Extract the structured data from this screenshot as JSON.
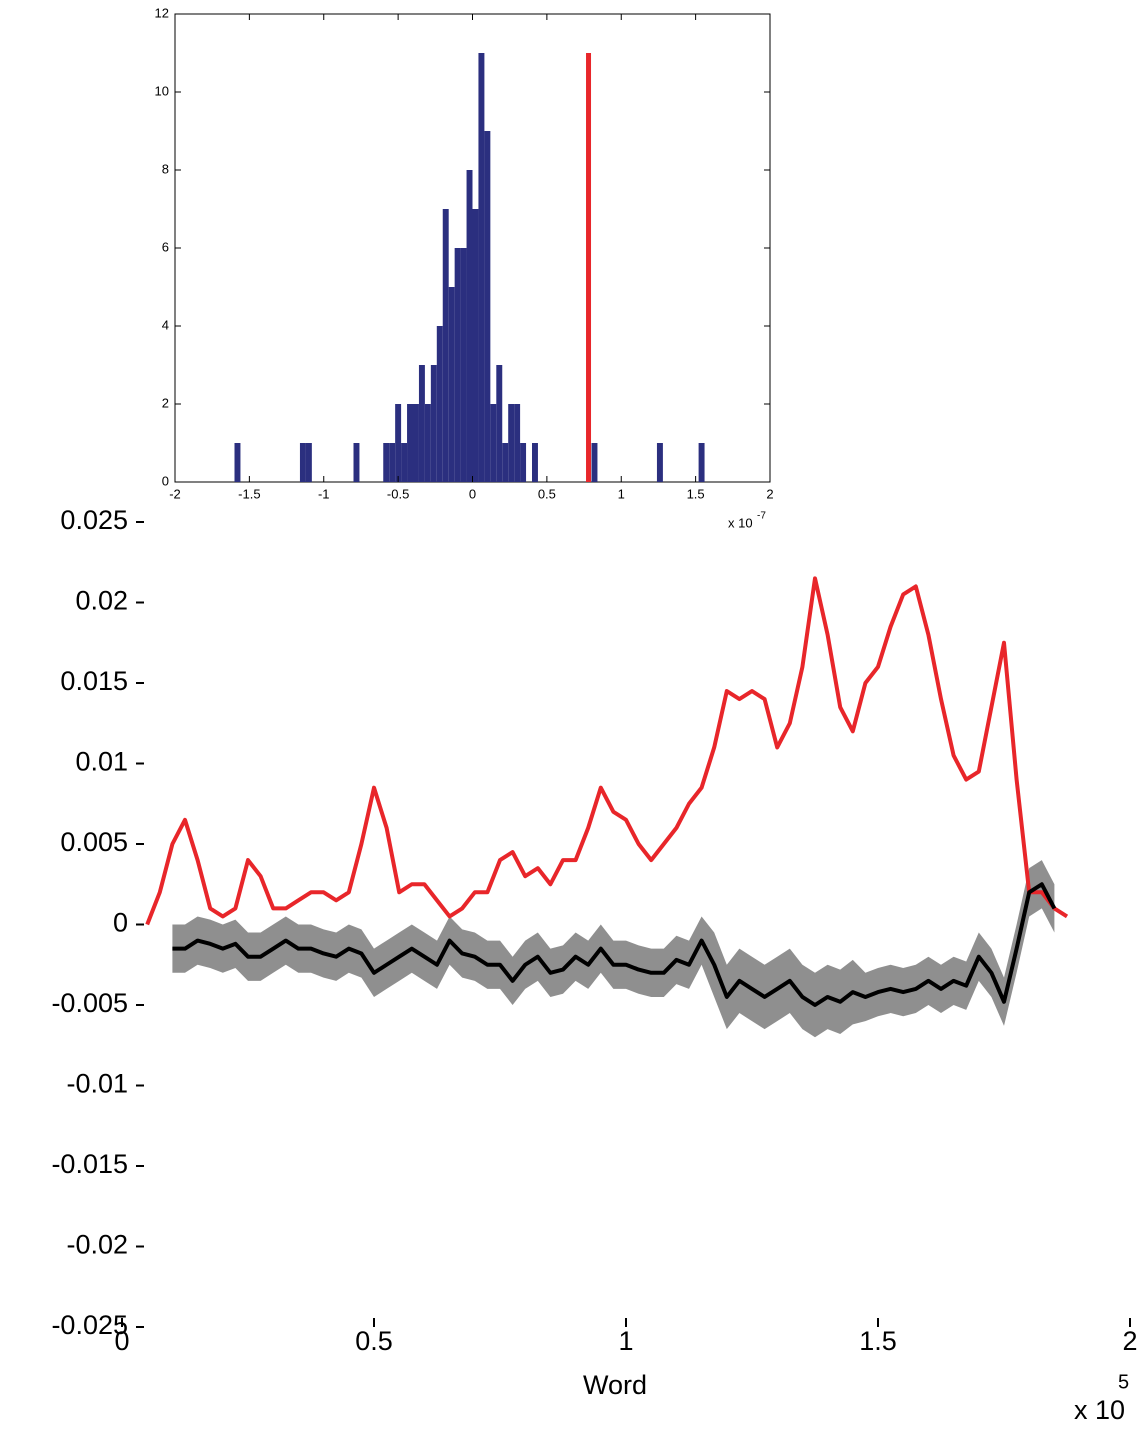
{
  "chart_data": [
    {
      "type": "histogram",
      "bins": [
        -1.6,
        -1.56,
        -1.52,
        -1.48,
        -1.44,
        -1.4,
        -1.36,
        -1.32,
        -1.28,
        -1.24,
        -1.2,
        -1.16,
        -1.12,
        -1.08,
        -1.04,
        -1,
        -0.96,
        -0.92,
        -0.88,
        -0.84,
        -0.8,
        -0.76,
        -0.72,
        -0.68,
        -0.64,
        -0.6,
        -0.56,
        -0.52,
        -0.48,
        -0.44,
        -0.4,
        -0.36,
        -0.32,
        -0.28,
        -0.24,
        -0.2,
        -0.16,
        -0.12,
        -0.08,
        -0.04,
        0,
        0.04,
        0.08,
        0.12,
        0.16,
        0.2,
        0.24,
        0.28,
        0.32,
        0.36,
        0.4,
        0.44,
        0.48,
        0.52,
        0.56,
        0.6,
        0.64,
        0.68,
        0.72,
        0.76,
        0.8,
        0.84,
        0.88,
        0.92,
        0.96,
        1,
        1.04,
        1.08,
        1.12,
        1.16,
        1.2,
        1.24,
        1.28,
        1.32,
        1.36,
        1.4,
        1.44,
        1.48,
        1.52,
        1.56,
        1.6
      ],
      "counts": [
        1,
        0,
        0,
        0,
        0,
        0,
        0,
        0,
        0,
        0,
        0,
        1,
        1,
        0,
        0,
        0,
        0,
        0,
        0,
        0,
        1,
        0,
        0,
        0,
        0,
        1,
        1,
        2,
        1,
        2,
        2,
        3,
        2,
        3,
        4,
        7,
        5,
        6,
        6,
        8,
        7,
        11,
        9,
        2,
        3,
        1,
        2,
        2,
        1,
        0,
        1,
        0,
        0,
        0,
        0,
        0,
        0,
        0,
        0,
        0,
        1,
        0,
        0,
        0,
        0,
        0,
        0,
        0,
        0,
        0,
        0,
        1,
        0,
        0,
        0,
        0,
        0,
        0,
        1,
        0
      ],
      "color": "#2b2f7f",
      "xlim": [
        -2,
        2
      ],
      "xticks": [
        -2,
        -1.5,
        -1,
        -0.5,
        0,
        0.5,
        1,
        1.5,
        2
      ],
      "ylim": [
        0,
        12
      ],
      "yticks": [
        0,
        2,
        4,
        6,
        8,
        10,
        12
      ],
      "x_multiplier": "x 10",
      "x_exponent": "-7",
      "marker": {
        "x": 0.78,
        "height": 11,
        "color": "#e8262a"
      }
    },
    {
      "type": "line",
      "xlabel": "Word",
      "x_multiplier": "x 10",
      "x_exponent": "5",
      "x": [
        0.05,
        0.075,
        0.1,
        0.125,
        0.15,
        0.175,
        0.2,
        0.225,
        0.25,
        0.275,
        0.3,
        0.325,
        0.35,
        0.375,
        0.4,
        0.425,
        0.45,
        0.475,
        0.5,
        0.525,
        0.55,
        0.575,
        0.6,
        0.625,
        0.65,
        0.675,
        0.7,
        0.725,
        0.75,
        0.775,
        0.8,
        0.825,
        0.85,
        0.875,
        0.9,
        0.925,
        0.95,
        0.975,
        1,
        1.025,
        1.05,
        1.075,
        1.1,
        1.125,
        1.15,
        1.175,
        1.2,
        1.225,
        1.25,
        1.275,
        1.3,
        1.325,
        1.35,
        1.375,
        1.4,
        1.425,
        1.45,
        1.475,
        1.5,
        1.525,
        1.55,
        1.575,
        1.6,
        1.625,
        1.65,
        1.675,
        1.7,
        1.725,
        1.75,
        1.775,
        1.8,
        1.825,
        1.85,
        1.875
      ],
      "xlim": [
        0,
        2
      ],
      "xticks": [
        0,
        0.5,
        1,
        1.5,
        2
      ],
      "ylim": [
        -0.025,
        0.025
      ],
      "yticks": [
        0.025,
        0.02,
        0.015,
        0.01,
        0.005,
        0,
        -0.005,
        -0.01,
        -0.015,
        -0.02,
        -0.025
      ],
      "series": [
        {
          "color": "#e8262a",
          "values": [
            0,
            0.002,
            0.005,
            0.0065,
            0.004,
            0.001,
            0.0005,
            0.001,
            0.004,
            0.003,
            0.001,
            0.001,
            0.0015,
            0.002,
            0.002,
            0.0015,
            0.002,
            0.005,
            0.0085,
            0.006,
            0.002,
            0.0025,
            0.0025,
            0.0015,
            0.0005,
            0.001,
            0.002,
            0.002,
            0.004,
            0.0045,
            0.003,
            0.0035,
            0.0025,
            0.004,
            0.004,
            0.006,
            0.0085,
            0.007,
            0.0065,
            0.005,
            0.004,
            0.005,
            0.006,
            0.0075,
            0.0085,
            0.011,
            0.0145,
            0.014,
            0.0145,
            0.014,
            0.011,
            0.0125,
            0.016,
            0.0215,
            0.018,
            0.0135,
            0.012,
            0.015,
            0.016,
            0.0185,
            0.0205,
            0.021,
            0.018,
            0.014,
            0.0105,
            0.009,
            0.0095,
            0.0135,
            0.0175,
            0.009,
            0.002,
            0.002,
            0.001,
            0.0005
          ]
        },
        {
          "color": "#000000",
          "band_color": "#808080",
          "values": [
            null,
            null,
            -0.0015,
            -0.0015,
            -0.001,
            -0.0012,
            -0.0015,
            -0.0012,
            -0.002,
            -0.002,
            -0.0015,
            -0.001,
            -0.0015,
            -0.0015,
            -0.0018,
            -0.002,
            -0.0015,
            -0.0018,
            -0.003,
            -0.0025,
            -0.002,
            -0.0015,
            -0.002,
            -0.0025,
            -0.001,
            -0.0018,
            -0.002,
            -0.0025,
            -0.0025,
            -0.0035,
            -0.0025,
            -0.002,
            -0.003,
            -0.0028,
            -0.002,
            -0.0025,
            -0.0015,
            -0.0025,
            -0.0025,
            -0.0028,
            -0.003,
            -0.003,
            -0.0022,
            -0.0025,
            -0.001,
            -0.0025,
            -0.0045,
            -0.0035,
            -0.004,
            -0.0045,
            -0.004,
            -0.0035,
            -0.0045,
            -0.005,
            -0.0045,
            -0.0048,
            -0.0042,
            -0.0045,
            -0.0042,
            -0.004,
            -0.0042,
            -0.004,
            -0.0035,
            -0.004,
            -0.0035,
            -0.0038,
            -0.002,
            -0.003,
            -0.0048,
            -0.0015,
            0.002,
            0.0025,
            0.001,
            null
          ],
          "errors": [
            null,
            null,
            0.0015,
            0.0015,
            0.0015,
            0.0015,
            0.0015,
            0.0015,
            0.0015,
            0.0015,
            0.0015,
            0.0015,
            0.0015,
            0.0015,
            0.0015,
            0.0015,
            0.0015,
            0.0015,
            0.0015,
            0.0015,
            0.0015,
            0.0015,
            0.0015,
            0.0015,
            0.0015,
            0.0015,
            0.0015,
            0.0015,
            0.0015,
            0.0015,
            0.0015,
            0.0015,
            0.0015,
            0.0015,
            0.0015,
            0.0015,
            0.0015,
            0.0015,
            0.0015,
            0.0015,
            0.0015,
            0.0015,
            0.0015,
            0.0015,
            0.0015,
            0.002,
            0.002,
            0.002,
            0.002,
            0.002,
            0.002,
            0.002,
            0.002,
            0.002,
            0.002,
            0.002,
            0.002,
            0.0015,
            0.0015,
            0.0015,
            0.0015,
            0.0015,
            0.0015,
            0.0015,
            0.0015,
            0.0015,
            0.0015,
            0.0015,
            0.0015,
            0.0015,
            0.0015,
            0.0015,
            0.0015,
            null
          ]
        }
      ]
    }
  ]
}
